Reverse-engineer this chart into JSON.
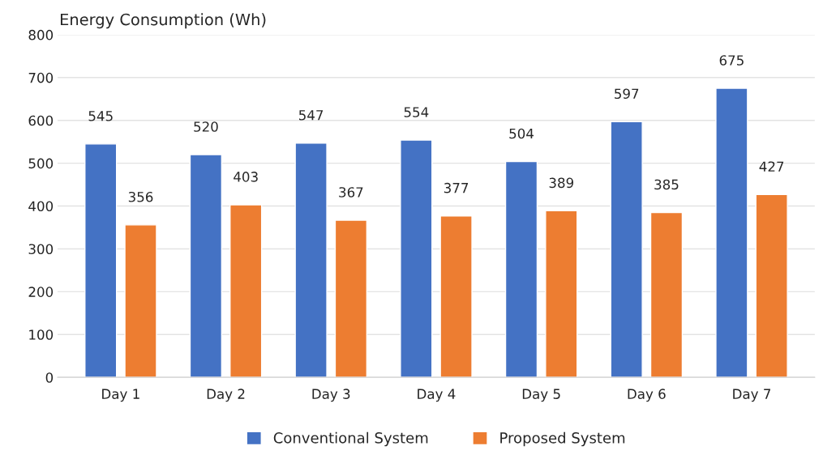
{
  "chart_data": {
    "type": "bar",
    "title": "Energy Consumption (Wh)",
    "categories": [
      "Day 1",
      "Day 2",
      "Day 3",
      "Day 4",
      "Day 5",
      "Day 6",
      "Day 7"
    ],
    "series": [
      {
        "name": "Conventional System",
        "color": "#4472c4",
        "values": [
          545,
          520,
          547,
          554,
          504,
          597,
          675
        ]
      },
      {
        "name": "Proposed System",
        "color": "#ed7d31",
        "values": [
          356,
          403,
          367,
          377,
          389,
          385,
          427
        ]
      }
    ],
    "ylim": [
      0,
      800
    ],
    "yticks": [
      0,
      100,
      200,
      300,
      400,
      500,
      600,
      700,
      800
    ],
    "grid": "y",
    "legend": "bottom",
    "data_labels": true
  }
}
